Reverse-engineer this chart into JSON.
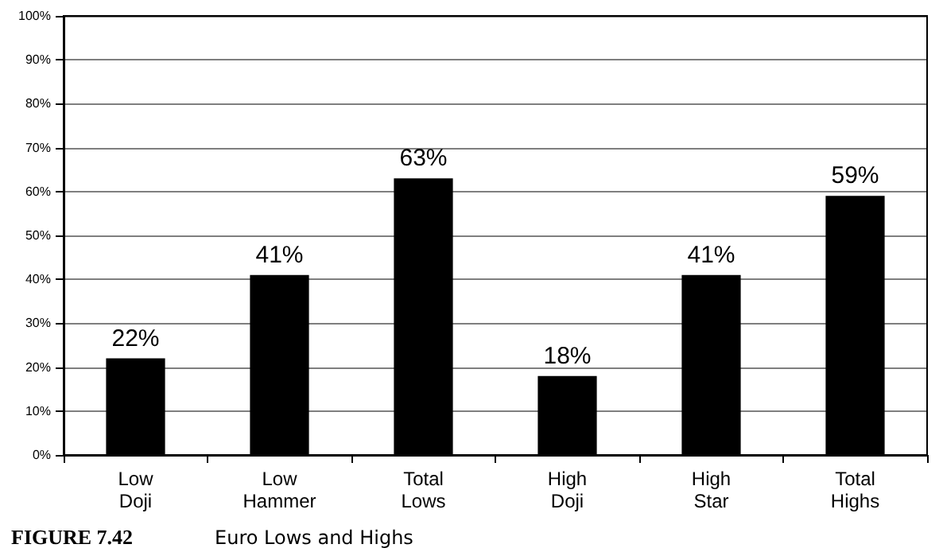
{
  "chart_data": {
    "type": "bar",
    "title": "FIGURE 7.42",
    "subtitle": "Euro Lows and Highs",
    "categories": [
      "Low Doji",
      "Low Hammer",
      "Total Lows",
      "High Doji",
      "High Star",
      "Total Highs"
    ],
    "values": [
      22,
      41,
      63,
      18,
      41,
      59
    ],
    "value_labels": [
      "22%",
      "41%",
      "63%",
      "18%",
      "41%",
      "59%"
    ],
    "color": "#000000",
    "ylim": [
      0,
      100
    ],
    "yticks": [
      {
        "value": 0,
        "label": "0%"
      },
      {
        "value": 10,
        "label": "10%"
      },
      {
        "value": 20,
        "label": "20%"
      },
      {
        "value": 30,
        "label": "30%"
      },
      {
        "value": 40,
        "label": "40%"
      },
      {
        "value": 50,
        "label": "50%"
      },
      {
        "value": 60,
        "label": "60%"
      },
      {
        "value": 70,
        "label": "70%"
      },
      {
        "value": 80,
        "label": "80%"
      },
      {
        "value": 90,
        "label": "90%"
      },
      {
        "value": 100,
        "label": "100%"
      }
    ],
    "grid": "y"
  }
}
